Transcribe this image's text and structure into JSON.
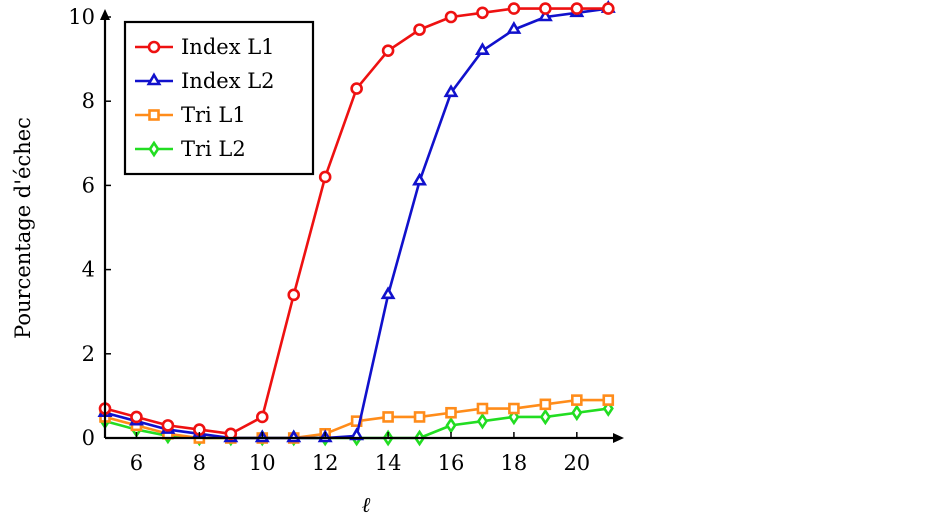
{
  "chart_data": {
    "type": "line",
    "xlabel": "ℓ",
    "ylabel": "Pourcentage d'échec",
    "xlim": [
      5,
      21.5
    ],
    "ylim": [
      0,
      10
    ],
    "xticks": [
      6,
      8,
      10,
      12,
      14,
      16,
      18,
      20
    ],
    "yticks": [
      0,
      2,
      4,
      6,
      8,
      10
    ],
    "grid": false,
    "legend_position": "top-left",
    "x": [
      5,
      6,
      7,
      8,
      9,
      10,
      11,
      12,
      13,
      14,
      15,
      16,
      17,
      18,
      19,
      20,
      21
    ],
    "series": [
      {
        "name": "Index L1",
        "color": "#ee1111",
        "marker": "circle",
        "values": [
          0.7,
          0.5,
          0.3,
          0.2,
          0.1,
          0.5,
          3.4,
          6.2,
          8.3,
          9.2,
          9.7,
          10.0,
          10.1,
          10.2,
          10.2,
          10.2,
          10.2
        ]
      },
      {
        "name": "Index L2",
        "color": "#1111cc",
        "marker": "triangle",
        "values": [
          0.6,
          0.4,
          0.2,
          0.1,
          0.0,
          0.0,
          0.0,
          0.0,
          0.05,
          3.4,
          6.1,
          8.2,
          9.2,
          9.7,
          10.0,
          10.1,
          10.2
        ]
      },
      {
        "name": "Tri L1",
        "color": "#ff8c1a",
        "marker": "square",
        "values": [
          0.5,
          0.3,
          0.1,
          0.0,
          0.0,
          0.0,
          0.0,
          0.1,
          0.4,
          0.5,
          0.5,
          0.6,
          0.7,
          0.7,
          0.8,
          0.9,
          0.9
        ]
      },
      {
        "name": "Tri L2",
        "color": "#22dd22",
        "marker": "diamond",
        "values": [
          0.4,
          0.2,
          0.05,
          0.0,
          0.0,
          0.0,
          0.0,
          0.0,
          0.0,
          0.0,
          0.0,
          0.3,
          0.4,
          0.5,
          0.5,
          0.6,
          0.7
        ]
      }
    ]
  }
}
